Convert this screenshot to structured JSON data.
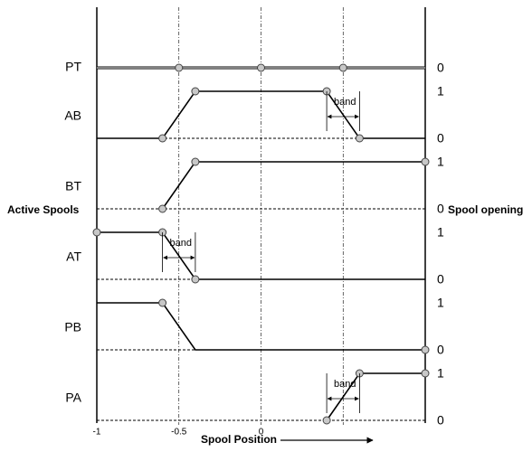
{
  "left_label": "Active Spools",
  "right_label": "Spool opening",
  "x_label": "Spool Position",
  "xlim": [
    -1,
    1
  ],
  "xticks": [
    -1,
    -0.5,
    0
  ],
  "guides": [
    -0.5,
    0,
    0.5
  ],
  "rows": [
    {
      "label": "PT",
      "levels": [
        0
      ],
      "points": [
        [
          -1,
          0
        ],
        [
          1,
          0
        ]
      ],
      "markers": [
        [
          -0.5,
          0
        ],
        [
          0,
          0
        ],
        [
          0.5,
          0
        ]
      ]
    },
    {
      "label": "AB",
      "levels": [
        1,
        0
      ],
      "points": [
        [
          -1,
          0
        ],
        [
          -0.6,
          0
        ],
        [
          -0.4,
          1
        ],
        [
          0.4,
          1
        ],
        [
          0.6,
          0
        ],
        [
          1,
          0
        ]
      ],
      "markers": [
        [
          -0.6,
          0
        ],
        [
          -0.4,
          1
        ],
        [
          0.4,
          1
        ],
        [
          0.6,
          0
        ]
      ],
      "band": {
        "label": "band",
        "from": 0.4,
        "to": 0.6
      }
    },
    {
      "label": "BT",
      "levels": [
        1,
        0
      ],
      "points": [
        [
          -0.6,
          0
        ],
        [
          -0.4,
          1
        ],
        [
          1,
          1
        ]
      ],
      "markers": [
        [
          -0.6,
          0
        ],
        [
          -0.4,
          1
        ],
        [
          1,
          1
        ]
      ]
    },
    {
      "label": "AT",
      "levels": [
        1,
        0
      ],
      "points": [
        [
          -1,
          1
        ],
        [
          -0.6,
          1
        ],
        [
          -0.4,
          0
        ],
        [
          1,
          0
        ]
      ],
      "markers": [
        [
          -1,
          1
        ],
        [
          -0.6,
          1
        ],
        [
          -0.4,
          0
        ]
      ],
      "band": {
        "label": "band",
        "from": -0.6,
        "to": -0.4
      }
    },
    {
      "label": "PB",
      "levels": [
        1,
        0
      ],
      "points": [
        [
          -1,
          1
        ],
        [
          -0.6,
          1
        ],
        [
          -0.4,
          0
        ],
        [
          1,
          0
        ]
      ],
      "markers": [
        [
          -0.6,
          1
        ],
        [
          1,
          0
        ]
      ]
    },
    {
      "label": "PA",
      "levels": [
        1,
        0
      ],
      "points": [
        [
          0.4,
          0
        ],
        [
          0.6,
          1
        ],
        [
          1,
          1
        ]
      ],
      "markers": [
        [
          0.4,
          0
        ],
        [
          0.6,
          1
        ],
        [
          1,
          1
        ]
      ],
      "band": {
        "label": "band",
        "from": 0.4,
        "to": 0.6
      }
    }
  ]
}
